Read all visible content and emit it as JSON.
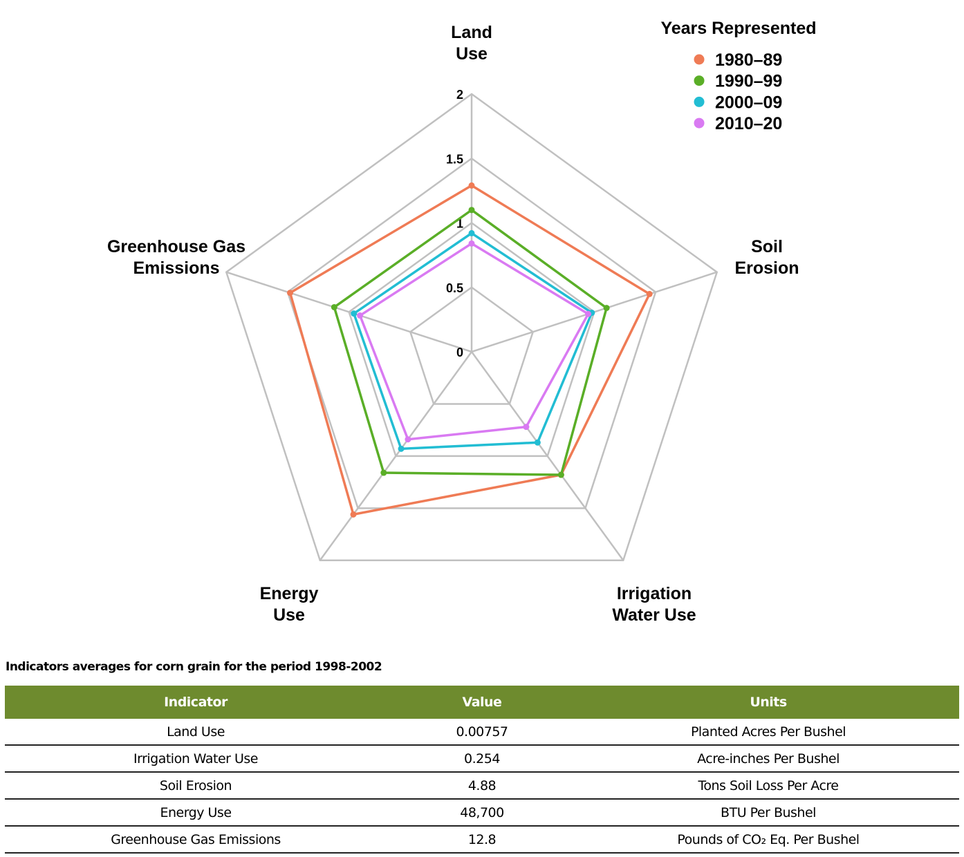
{
  "chart_data": {
    "type": "radar",
    "axes": [
      "Land Use",
      "Soil Erosion",
      "Irrigation Water Use",
      "Energy Use",
      "Greenhouse Gas Emissions"
    ],
    "axis_label_lines": [
      [
        "Land",
        "Use"
      ],
      [
        "Soil",
        "Erosion"
      ],
      [
        "Irrigation",
        "Water Use"
      ],
      [
        "Energy",
        "Use"
      ],
      [
        "Greenhouse Gas",
        "Emissions"
      ]
    ],
    "range": [
      0,
      2
    ],
    "ticks": [
      "0",
      "0.5",
      "1",
      "1.5",
      "2"
    ],
    "grid": true,
    "legend": {
      "title": "Years Represented",
      "position": "top-right"
    },
    "series": [
      {
        "name": "1980–89",
        "color": "#ef7b55",
        "values": [
          1.29,
          1.45,
          1.18,
          1.56,
          1.48
        ]
      },
      {
        "name": "1990–99",
        "color": "#5aae27",
        "values": [
          1.1,
          1.1,
          1.18,
          1.16,
          1.12
        ]
      },
      {
        "name": "2000–09",
        "color": "#22bdd3",
        "values": [
          0.92,
          0.98,
          0.87,
          0.93,
          0.96
        ]
      },
      {
        "name": "2010–20",
        "color": "#d97af2",
        "values": [
          0.84,
          0.95,
          0.72,
          0.84,
          0.91
        ]
      }
    ]
  },
  "table": {
    "caption": "Indicators averages for corn grain for the period 1998-2002",
    "headers": [
      "Indicator",
      "Value",
      "Units"
    ],
    "rows": [
      [
        "Land Use",
        "0.00757",
        "Planted Acres Per Bushel"
      ],
      [
        "Irrigation Water Use",
        "0.254",
        "Acre-inches Per Bushel"
      ],
      [
        "Soil Erosion",
        "4.88",
        "Tons Soil Loss Per Acre"
      ],
      [
        "Energy Use",
        "48,700",
        "BTU Per Bushel"
      ],
      [
        "Greenhouse Gas Emissions",
        "12.8",
        "Pounds of CO₂ Eq. Per Bushel"
      ]
    ]
  }
}
